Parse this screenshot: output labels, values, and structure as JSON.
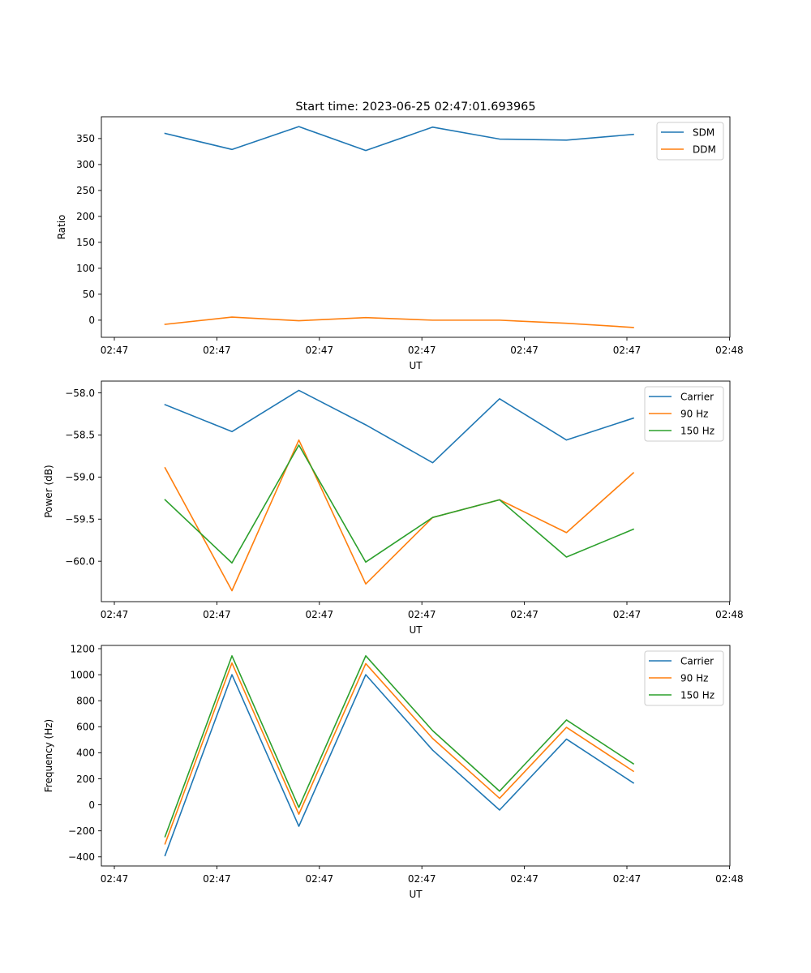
{
  "title": "Start time: 2023-06-25 02:47:01.693965",
  "colors": {
    "blue": "#1f77b4",
    "orange": "#ff7f0e",
    "green": "#2ca02c"
  },
  "chart_data": [
    {
      "type": "line",
      "xlabel": "UT",
      "ylabel": "Ratio",
      "x_ticks": [
        "02:47",
        "02:47",
        "02:47",
        "02:47",
        "02:47",
        "02:47",
        "02:48"
      ],
      "y_ticks": [
        0,
        50,
        100,
        150,
        200,
        250,
        300,
        350
      ],
      "ylim": [
        -33,
        392
      ],
      "legend": "upper right",
      "series": [
        {
          "name": "SDM",
          "color": "#1f77b4",
          "values": [
            360,
            329,
            373,
            327,
            372,
            349,
            347,
            358
          ]
        },
        {
          "name": "DDM",
          "color": "#ff7f0e",
          "values": [
            -8,
            6,
            -1,
            5,
            0,
            0,
            -6,
            -14
          ]
        }
      ]
    },
    {
      "type": "line",
      "xlabel": "UT",
      "ylabel": "Power (dB)",
      "x_ticks": [
        "02:47",
        "02:47",
        "02:47",
        "02:47",
        "02:47",
        "02:47",
        "02:48"
      ],
      "y_ticks": [
        -60.0,
        -59.5,
        -59.0,
        -58.5,
        -58.0
      ],
      "y_tick_labels": [
        "−60.0",
        "−59.5",
        "−59.0",
        "−58.5",
        "−58.0"
      ],
      "ylim": [
        -60.48,
        -57.86
      ],
      "legend": "upper right",
      "series": [
        {
          "name": "Carrier",
          "color": "#1f77b4",
          "values": [
            -58.14,
            -58.46,
            -57.97,
            -58.38,
            -58.83,
            -58.07,
            -58.56,
            -58.3
          ]
        },
        {
          "name": "90 Hz",
          "color": "#ff7f0e",
          "values": [
            -58.89,
            -60.35,
            -58.56,
            -60.27,
            -59.48,
            -59.27,
            -59.66,
            -58.95
          ]
        },
        {
          "name": "150 Hz",
          "color": "#2ca02c",
          "values": [
            -59.27,
            -60.02,
            -58.62,
            -60.01,
            -59.48,
            -59.27,
            -59.95,
            -59.62
          ]
        }
      ]
    },
    {
      "type": "line",
      "xlabel": "UT",
      "ylabel": "Frequency (Hz)",
      "x_ticks": [
        "02:47",
        "02:47",
        "02:47",
        "02:47",
        "02:47",
        "02:47",
        "02:48"
      ],
      "y_ticks": [
        -400,
        -200,
        0,
        200,
        400,
        600,
        800,
        1000,
        1200
      ],
      "y_tick_labels": [
        "−400",
        "−200",
        "0",
        "200",
        "400",
        "600",
        "800",
        "1000",
        "1200"
      ],
      "ylim": [
        -470,
        1225
      ],
      "legend": "upper right",
      "series": [
        {
          "name": "Carrier",
          "color": "#1f77b4",
          "values": [
            -390,
            1000,
            -165,
            1000,
            420,
            -40,
            505,
            168
          ]
        },
        {
          "name": "90 Hz",
          "color": "#ff7f0e",
          "values": [
            -300,
            1090,
            -72,
            1085,
            510,
            50,
            595,
            258
          ]
        },
        {
          "name": "150 Hz",
          "color": "#2ca02c",
          "values": [
            -245,
            1145,
            -20,
            1145,
            570,
            105,
            652,
            315
          ]
        }
      ]
    }
  ]
}
